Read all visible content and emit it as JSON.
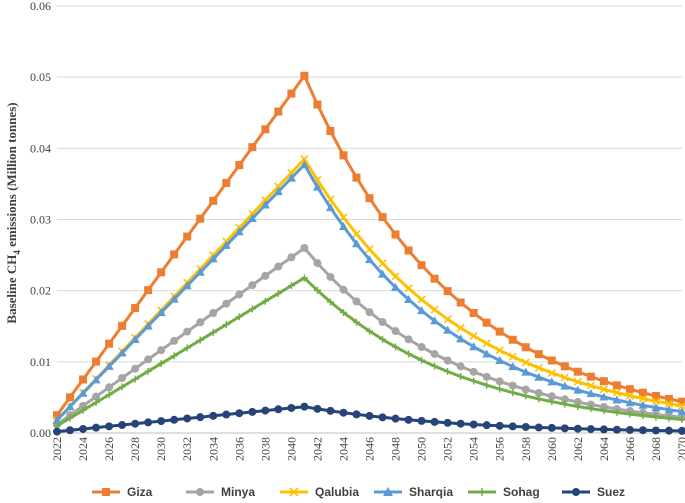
{
  "chart_data": {
    "type": "line",
    "title": "",
    "xlabel": "",
    "ylabel": "Baseline CH4 emissions (Million tonnes)",
    "ylabel_parts": {
      "pre": "Baseline CH",
      "sub": "4",
      "post": " emissions (Million tonnes)"
    },
    "ylim": [
      0,
      0.06
    ],
    "yticks": [
      "0.00",
      "0.01",
      "0.02",
      "0.03",
      "0.04",
      "0.05",
      "0.06"
    ],
    "xlim": [
      2022,
      2070
    ],
    "x_tick_labels": [
      "2022",
      "2024",
      "2026",
      "2028",
      "2030",
      "2032",
      "2034",
      "2036",
      "2038",
      "2040",
      "2042",
      "2044",
      "2046",
      "2048",
      "2050",
      "2052",
      "2054",
      "2056",
      "2058",
      "2060",
      "2062",
      "2064",
      "2066",
      "2068",
      "2070"
    ],
    "grid": true,
    "legend_position": "bottom",
    "peak_year": 2041,
    "series": [
      {
        "name": "Giza",
        "color": "#ED7D31",
        "marker": "square",
        "start": 0.0025,
        "peak": 0.0502,
        "end": 0.0044
      },
      {
        "name": "Minya",
        "color": "#A5A5A5",
        "marker": "circle",
        "start": 0.0012,
        "peak": 0.026,
        "end": 0.0022
      },
      {
        "name": "Qalubia",
        "color": "#FFC000",
        "marker": "x",
        "start": 0.0018,
        "peak": 0.0385,
        "end": 0.0038
      },
      {
        "name": "Sharqia",
        "color": "#5B9BD5",
        "marker": "triangle",
        "start": 0.0018,
        "peak": 0.0377,
        "end": 0.003
      },
      {
        "name": "Sohag",
        "color": "#70AD47",
        "marker": "plus",
        "start": 0.001,
        "peak": 0.0218,
        "end": 0.0019
      },
      {
        "name": "Suez",
        "color": "#264478",
        "marker": "circle",
        "start": 0.0002,
        "peak": 0.0037,
        "end": 0.0003
      }
    ]
  }
}
